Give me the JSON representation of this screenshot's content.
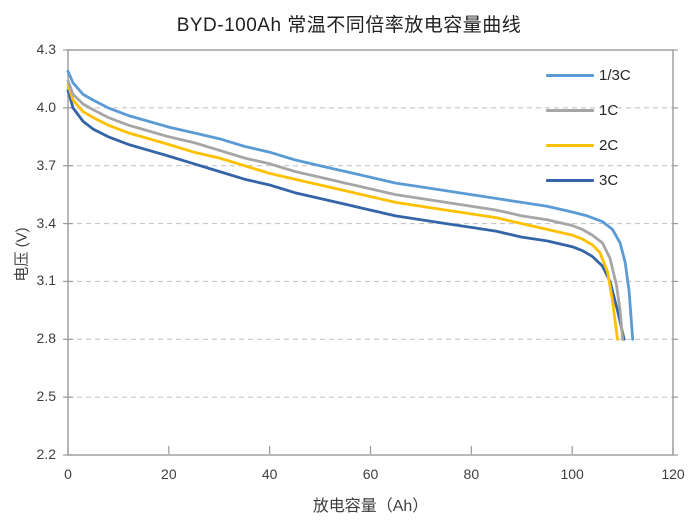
{
  "chart_data": {
    "type": "line",
    "title": "BYD-100Ah 常温不同倍率放电容量曲线",
    "xlabel": "放电容量（Ah）",
    "ylabel": "电压 (V)",
    "xlim": [
      0,
      120
    ],
    "ylim": [
      2.2,
      4.3
    ],
    "x_ticks": [
      0,
      20,
      40,
      60,
      80,
      100,
      120
    ],
    "y_ticks": [
      2.2,
      2.5,
      2.8,
      3.1,
      3.4,
      3.7,
      4.0,
      4.3
    ],
    "grid": "horizontal-dashed",
    "legend_position": "top-right-inside",
    "colors": {
      "grid": "#c6c6c6",
      "axis_border": "#9a9a9a",
      "tick_text": "#3f3f3f",
      "title_text": "#1f1f1f"
    },
    "series": [
      {
        "name": "1/3C",
        "color": "#5b9bd5",
        "points": [
          [
            0,
            4.19
          ],
          [
            1,
            4.13
          ],
          [
            3,
            4.07
          ],
          [
            5,
            4.04
          ],
          [
            8,
            4.0
          ],
          [
            12,
            3.96
          ],
          [
            16,
            3.93
          ],
          [
            20,
            3.9
          ],
          [
            25,
            3.87
          ],
          [
            30,
            3.84
          ],
          [
            35,
            3.8
          ],
          [
            40,
            3.77
          ],
          [
            45,
            3.73
          ],
          [
            50,
            3.7
          ],
          [
            55,
            3.67
          ],
          [
            60,
            3.64
          ],
          [
            65,
            3.61
          ],
          [
            70,
            3.59
          ],
          [
            75,
            3.57
          ],
          [
            80,
            3.55
          ],
          [
            85,
            3.53
          ],
          [
            90,
            3.51
          ],
          [
            95,
            3.49
          ],
          [
            100,
            3.46
          ],
          [
            103,
            3.44
          ],
          [
            106,
            3.41
          ],
          [
            108,
            3.37
          ],
          [
            109.5,
            3.3
          ],
          [
            110.5,
            3.2
          ],
          [
            111.3,
            3.05
          ],
          [
            112,
            2.8
          ]
        ]
      },
      {
        "name": "1C",
        "color": "#a6a6a6",
        "points": [
          [
            0,
            4.14
          ],
          [
            1,
            4.07
          ],
          [
            3,
            4.02
          ],
          [
            5,
            3.99
          ],
          [
            8,
            3.95
          ],
          [
            12,
            3.91
          ],
          [
            16,
            3.88
          ],
          [
            20,
            3.85
          ],
          [
            25,
            3.82
          ],
          [
            30,
            3.78
          ],
          [
            35,
            3.74
          ],
          [
            40,
            3.71
          ],
          [
            45,
            3.67
          ],
          [
            50,
            3.64
          ],
          [
            55,
            3.61
          ],
          [
            60,
            3.58
          ],
          [
            65,
            3.55
          ],
          [
            70,
            3.53
          ],
          [
            75,
            3.51
          ],
          [
            80,
            3.49
          ],
          [
            85,
            3.47
          ],
          [
            90,
            3.44
          ],
          [
            95,
            3.42
          ],
          [
            100,
            3.39
          ],
          [
            102,
            3.37
          ],
          [
            104,
            3.34
          ],
          [
            106,
            3.3
          ],
          [
            107.5,
            3.22
          ],
          [
            108.8,
            3.08
          ],
          [
            109.5,
            2.95
          ],
          [
            110,
            2.8
          ]
        ]
      },
      {
        "name": "2C",
        "color": "#ffc000",
        "points": [
          [
            0,
            4.12
          ],
          [
            1,
            4.04
          ],
          [
            3,
            3.98
          ],
          [
            5,
            3.95
          ],
          [
            8,
            3.91
          ],
          [
            12,
            3.87
          ],
          [
            16,
            3.84
          ],
          [
            20,
            3.81
          ],
          [
            25,
            3.77
          ],
          [
            30,
            3.74
          ],
          [
            35,
            3.7
          ],
          [
            40,
            3.66
          ],
          [
            45,
            3.63
          ],
          [
            50,
            3.6
          ],
          [
            55,
            3.57
          ],
          [
            60,
            3.54
          ],
          [
            65,
            3.51
          ],
          [
            70,
            3.49
          ],
          [
            75,
            3.47
          ],
          [
            80,
            3.45
          ],
          [
            85,
            3.43
          ],
          [
            90,
            3.4
          ],
          [
            95,
            3.37
          ],
          [
            100,
            3.34
          ],
          [
            102,
            3.32
          ],
          [
            104,
            3.29
          ],
          [
            105.5,
            3.25
          ],
          [
            107,
            3.15
          ],
          [
            108,
            3.0
          ],
          [
            109,
            2.8
          ]
        ]
      },
      {
        "name": "3C",
        "color": "#3465a8",
        "points": [
          [
            0,
            4.09
          ],
          [
            1,
            4.0
          ],
          [
            3,
            3.93
          ],
          [
            5,
            3.89
          ],
          [
            8,
            3.85
          ],
          [
            12,
            3.81
          ],
          [
            16,
            3.78
          ],
          [
            20,
            3.75
          ],
          [
            25,
            3.71
          ],
          [
            30,
            3.67
          ],
          [
            35,
            3.63
          ],
          [
            40,
            3.6
          ],
          [
            45,
            3.56
          ],
          [
            50,
            3.53
          ],
          [
            55,
            3.5
          ],
          [
            60,
            3.47
          ],
          [
            65,
            3.44
          ],
          [
            70,
            3.42
          ],
          [
            75,
            3.4
          ],
          [
            80,
            3.38
          ],
          [
            85,
            3.36
          ],
          [
            90,
            3.33
          ],
          [
            95,
            3.31
          ],
          [
            100,
            3.28
          ],
          [
            102,
            3.26
          ],
          [
            104,
            3.23
          ],
          [
            106,
            3.18
          ],
          [
            107.5,
            3.1
          ],
          [
            109,
            2.95
          ],
          [
            110.3,
            2.8
          ]
        ]
      }
    ]
  }
}
